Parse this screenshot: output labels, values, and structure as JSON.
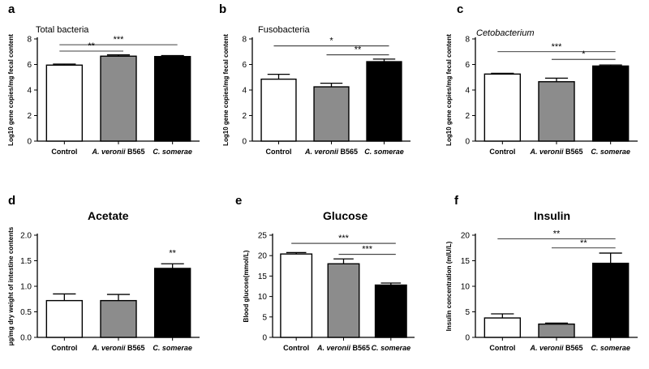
{
  "chart_data": [
    {
      "type": "bar",
      "panel": "a",
      "title": "Total bacteria",
      "title_style": "plain",
      "ylabel": "Log10 gene copies/mg fecal content",
      "ylim": [
        0,
        8
      ],
      "yticks": [
        0,
        2,
        4,
        6,
        8
      ],
      "categories": [
        {
          "pre": "",
          "it": "",
          "post": "Control"
        },
        {
          "pre": "",
          "it": "A. veronii",
          "post": " B565"
        },
        {
          "pre": "",
          "it": "C. somerae",
          "post": ""
        }
      ],
      "values": [
        5.95,
        6.65,
        6.62
      ],
      "errors": [
        0.08,
        0.1,
        0.08
      ],
      "bar_colors": [
        "#ffffff",
        "#8c8c8c",
        "#000000"
      ],
      "significance": [
        {
          "from": 0,
          "to": 1,
          "y": 7.05,
          "label": "**"
        },
        {
          "from": 0,
          "to": 2,
          "y": 7.55,
          "label": "***"
        }
      ]
    },
    {
      "type": "bar",
      "panel": "b",
      "title": "Fusobacteria",
      "title_style": "plain",
      "ylabel": "Log10 gene copies/mg fecal content",
      "ylim": [
        0,
        8
      ],
      "yticks": [
        0,
        2,
        4,
        6,
        8
      ],
      "categories": [
        {
          "pre": "",
          "it": "",
          "post": "Control"
        },
        {
          "pre": "",
          "it": "A. veronii",
          "post": " B565"
        },
        {
          "pre": "",
          "it": "C. somerae",
          "post": ""
        }
      ],
      "values": [
        4.85,
        4.25,
        6.22
      ],
      "errors": [
        0.38,
        0.28,
        0.2
      ],
      "bar_colors": [
        "#ffffff",
        "#8c8c8c",
        "#000000"
      ],
      "significance": [
        {
          "from": 1,
          "to": 2,
          "y": 6.75,
          "label": "**"
        },
        {
          "from": 0,
          "to": 2,
          "y": 7.45,
          "label": "*"
        }
      ]
    },
    {
      "type": "bar",
      "panel": "c",
      "title": "Cetobacterium",
      "title_style": "italic",
      "ylabel": "Log10 gene copies/mg fecal content",
      "ylim": [
        0,
        8
      ],
      "yticks": [
        0,
        2,
        4,
        6,
        8
      ],
      "categories": [
        {
          "pre": "",
          "it": "",
          "post": "Control"
        },
        {
          "pre": "",
          "it": "A. veronii",
          "post": " B565"
        },
        {
          "pre": "",
          "it": "C. somerae",
          "post": ""
        }
      ],
      "values": [
        5.25,
        4.65,
        5.88
      ],
      "errors": [
        0.06,
        0.28,
        0.08
      ],
      "bar_colors": [
        "#ffffff",
        "#8c8c8c",
        "#000000"
      ],
      "significance": [
        {
          "from": 1,
          "to": 2,
          "y": 6.4,
          "label": "*"
        },
        {
          "from": 0,
          "to": 2,
          "y": 7.0,
          "label": "***"
        }
      ]
    },
    {
      "type": "bar",
      "panel": "d",
      "title": "Acetate",
      "title_style": "bold",
      "ylabel": "µg/mg dry weight of intestine contents",
      "ylim": [
        0,
        2.0
      ],
      "yticks": [
        0,
        0.5,
        1.0,
        1.5,
        2.0
      ],
      "categories": [
        {
          "pre": "",
          "it": "",
          "post": "Control"
        },
        {
          "pre": "",
          "it": "A. veronii",
          "post": " B565"
        },
        {
          "pre": "",
          "it": "C. somerae",
          "post": ""
        }
      ],
      "values": [
        0.72,
        0.72,
        1.35
      ],
      "errors": [
        0.13,
        0.12,
        0.09
      ],
      "bar_colors": [
        "#ffffff",
        "#8c8c8c",
        "#000000"
      ],
      "significance": [],
      "above_labels": [
        {
          "index": 2,
          "label": "**"
        }
      ]
    },
    {
      "type": "bar",
      "panel": "e",
      "title": "Glucose",
      "title_style": "bold",
      "ylabel": "Blood glucose(mmol/L)",
      "ylim": [
        0,
        25
      ],
      "yticks": [
        0,
        5,
        10,
        15,
        20,
        25
      ],
      "categories": [
        {
          "pre": "",
          "it": "",
          "post": "Control"
        },
        {
          "pre": "",
          "it": "A. veronii",
          "post": " B565"
        },
        {
          "pre": "",
          "it": "C. somerae",
          "post": ""
        }
      ],
      "values": [
        20.4,
        18.0,
        12.8
      ],
      "errors": [
        0.35,
        1.2,
        0.5
      ],
      "bar_colors": [
        "#ffffff",
        "#8c8c8c",
        "#000000"
      ],
      "significance": [
        {
          "from": 1,
          "to": 2,
          "y": 20.3,
          "label": "***"
        },
        {
          "from": 0,
          "to": 2,
          "y": 23.0,
          "label": "***"
        }
      ]
    },
    {
      "type": "bar",
      "panel": "f",
      "title": "Insulin",
      "title_style": "bold",
      "ylabel": "Insulin concentration (mIU/L)",
      "ylim": [
        0,
        20
      ],
      "yticks": [
        0,
        5,
        10,
        15,
        20
      ],
      "categories": [
        {
          "pre": "",
          "it": "",
          "post": "Control"
        },
        {
          "pre": "",
          "it": "A. veronii",
          "post": " B565"
        },
        {
          "pre": "",
          "it": "C. somerae",
          "post": ""
        }
      ],
      "values": [
        3.8,
        2.6,
        14.5
      ],
      "errors": [
        0.8,
        0.2,
        2.0
      ],
      "bar_colors": [
        "#ffffff",
        "#8c8c8c",
        "#000000"
      ],
      "significance": [
        {
          "from": 1,
          "to": 2,
          "y": 17.5,
          "label": "**"
        },
        {
          "from": 0,
          "to": 2,
          "y": 19.3,
          "label": "**"
        }
      ]
    }
  ]
}
